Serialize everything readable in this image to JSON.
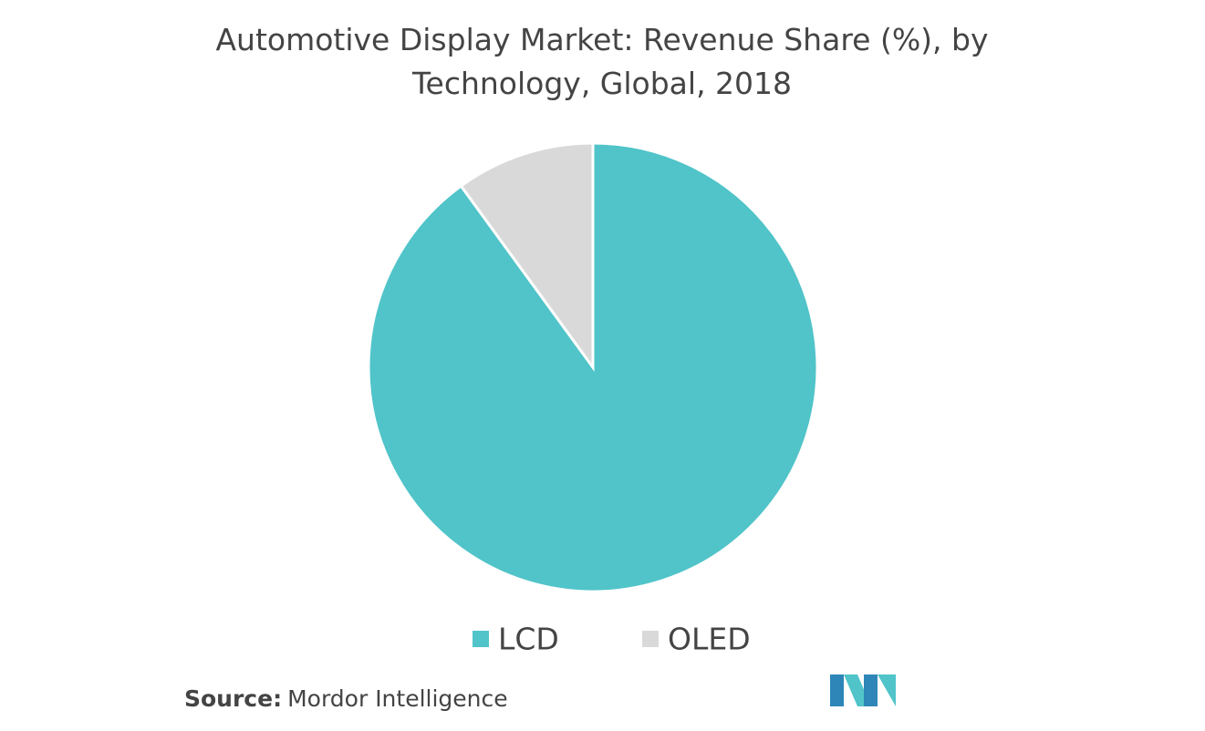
{
  "chart_data": {
    "type": "pie",
    "title": "Automotive Display Market: Revenue Share (%), by Technology, Global, 2018",
    "categories": [
      "LCD",
      "OLED"
    ],
    "values": [
      90,
      10
    ],
    "colors": [
      "#50c4c9",
      "#d9d9d9"
    ],
    "legend": "bottom",
    "source_label": "Source:",
    "source": "Mordor Intelligence"
  }
}
